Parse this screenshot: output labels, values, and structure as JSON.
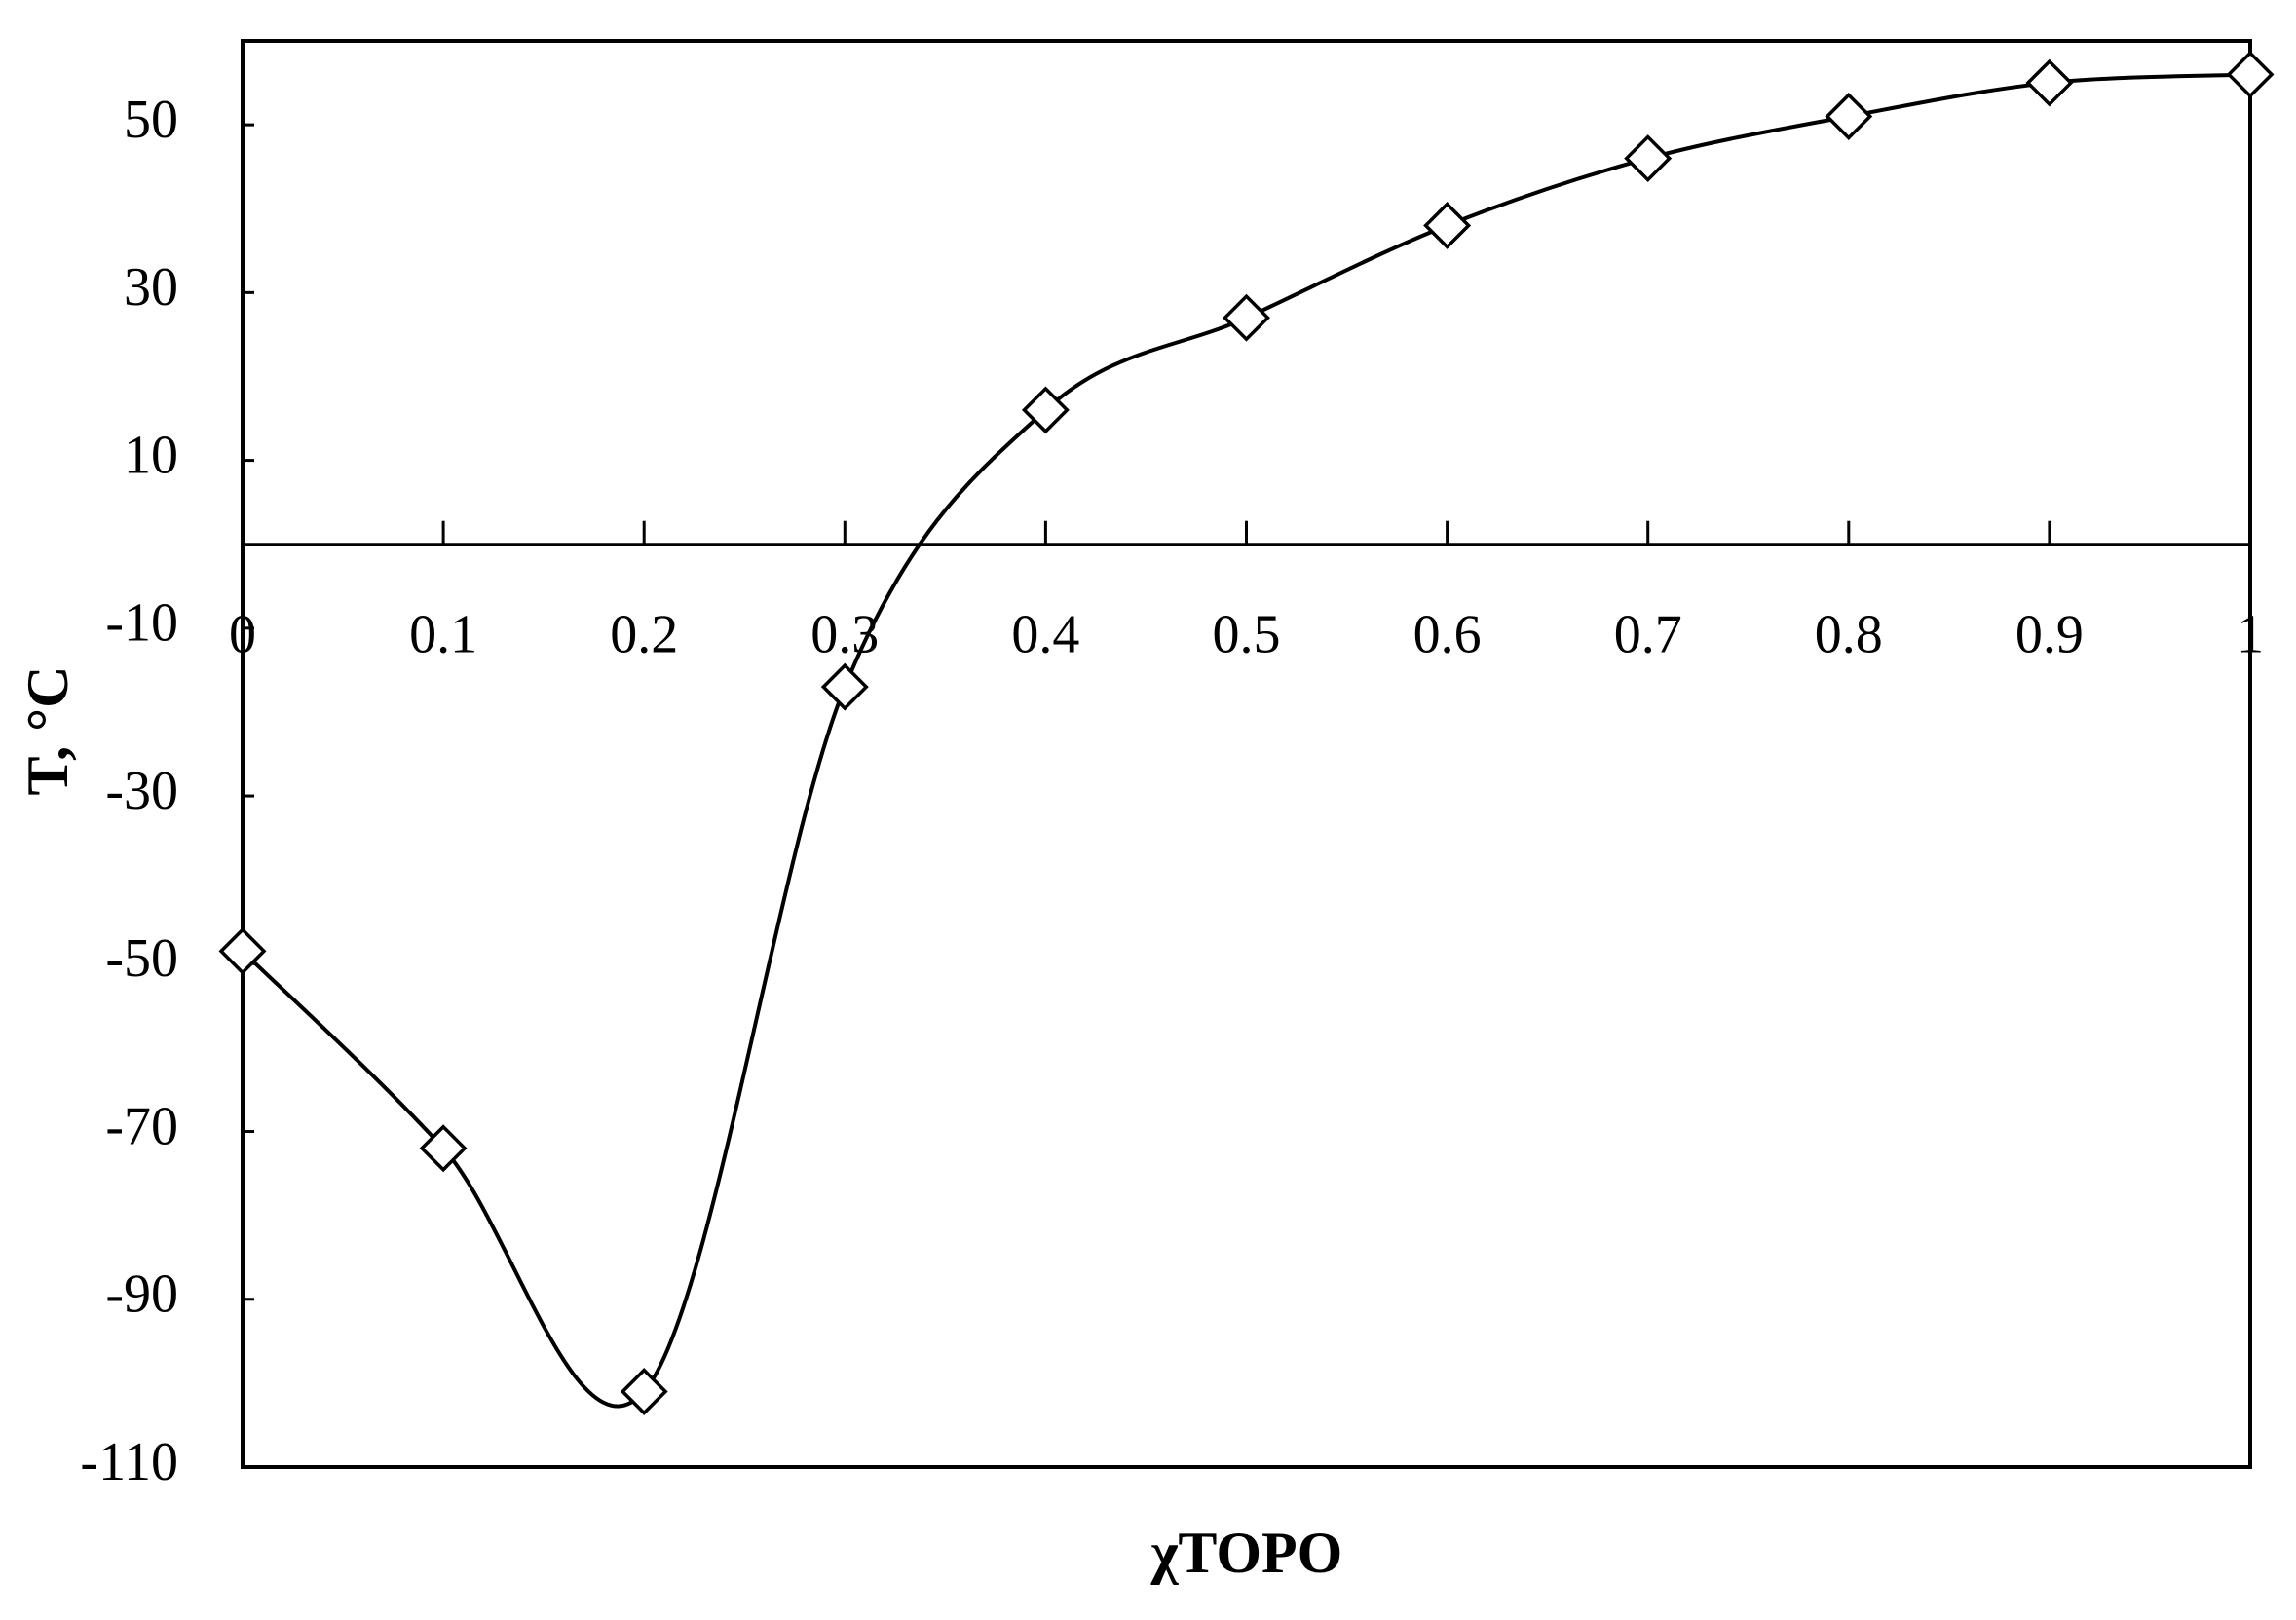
{
  "chart_data": {
    "type": "scatter",
    "x_label": "χTOPO",
    "y_label": "T, °C",
    "x": [
      0,
      0.1,
      0.2,
      0.3,
      0.4,
      0.5,
      0.6,
      0.7,
      0.8,
      0.9,
      1
    ],
    "values": [
      -48.5,
      -72,
      -101,
      -17,
      16,
      27,
      38,
      46,
      51,
      55,
      56
    ],
    "color": "#000000",
    "marker": "diamond",
    "line": "smooth",
    "xlim": [
      0,
      1
    ],
    "xticks": [
      0,
      0.1,
      0.2,
      0.3,
      0.4,
      0.5,
      0.6,
      0.7,
      0.8,
      0.9,
      1
    ],
    "ylim": [
      -110,
      60
    ],
    "yticks": [
      50,
      30,
      10,
      -10,
      -30,
      -50,
      -70,
      -90,
      -110
    ]
  }
}
